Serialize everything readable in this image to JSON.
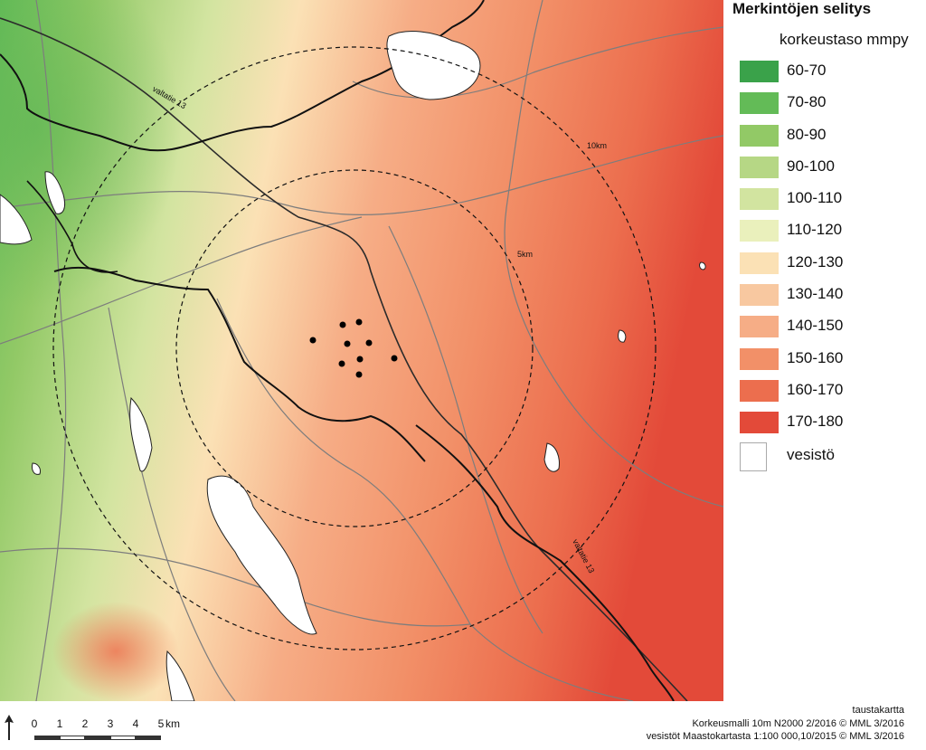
{
  "legend": {
    "title": "Merkintöjen selitys",
    "subtitle": "korkeustaso mmpy",
    "items": [
      {
        "label": "60-70",
        "color": "#3aa24a"
      },
      {
        "label": "70-80",
        "color": "#63bb57"
      },
      {
        "label": "80-90",
        "color": "#92c966"
      },
      {
        "label": "90-100",
        "color": "#b6d785"
      },
      {
        "label": "100-110",
        "color": "#d2e4a0"
      },
      {
        "label": "110-120",
        "color": "#eaf0bc"
      },
      {
        "label": "120-130",
        "color": "#fbe1b5"
      },
      {
        "label": "130-140",
        "color": "#f8c8a0"
      },
      {
        "label": "140-150",
        "color": "#f6ad86"
      },
      {
        "label": "150-160",
        "color": "#f29068"
      },
      {
        "label": "160-170",
        "color": "#ec6e4e"
      },
      {
        "label": "170-180",
        "color": "#e34a39"
      }
    ],
    "water_label": "vesistö",
    "water_color": "#ffffff"
  },
  "map": {
    "road_label_nw": "valtatie 13",
    "road_label_se": "valtatie 13",
    "ring_10km_label": "10km",
    "ring_5km_label": "5km",
    "turbine_count": 9
  },
  "scale": {
    "ticks": [
      "0",
      "1",
      "2",
      "3",
      "4",
      "5"
    ],
    "unit": "km"
  },
  "credits": {
    "line1": "taustakartta",
    "line2": "Korkeusmalli 10m N2000 2/2016 © MML 3/2016",
    "line3": "vesistöt Maastokartasta 1:100 000,10/2015 © MML 3/2016"
  },
  "north_icon": "north-arrow-icon"
}
